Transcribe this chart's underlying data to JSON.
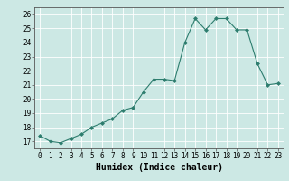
{
  "x": [
    0,
    1,
    2,
    3,
    4,
    5,
    6,
    7,
    8,
    9,
    10,
    11,
    12,
    13,
    14,
    15,
    16,
    17,
    18,
    19,
    20,
    21,
    22,
    23
  ],
  "y": [
    17.4,
    17.0,
    16.9,
    17.2,
    17.5,
    18.0,
    18.3,
    18.6,
    19.2,
    19.4,
    20.5,
    21.4,
    21.4,
    21.3,
    24.0,
    25.7,
    24.9,
    25.7,
    25.7,
    24.9,
    24.9,
    22.5,
    21.0,
    21.1
  ],
  "xlabel": "Humidex (Indice chaleur)",
  "xlim": [
    -0.5,
    23.5
  ],
  "ylim": [
    16.5,
    26.5
  ],
  "yticks": [
    17,
    18,
    19,
    20,
    21,
    22,
    23,
    24,
    25,
    26
  ],
  "xticks": [
    0,
    1,
    2,
    3,
    4,
    5,
    6,
    7,
    8,
    9,
    10,
    11,
    12,
    13,
    14,
    15,
    16,
    17,
    18,
    19,
    20,
    21,
    22,
    23
  ],
  "line_color": "#2d7d6e",
  "marker_color": "#2d7d6e",
  "bg_color": "#cce8e4",
  "grid_color": "#ffffff",
  "tick_fontsize": 5.5,
  "label_fontsize": 7
}
